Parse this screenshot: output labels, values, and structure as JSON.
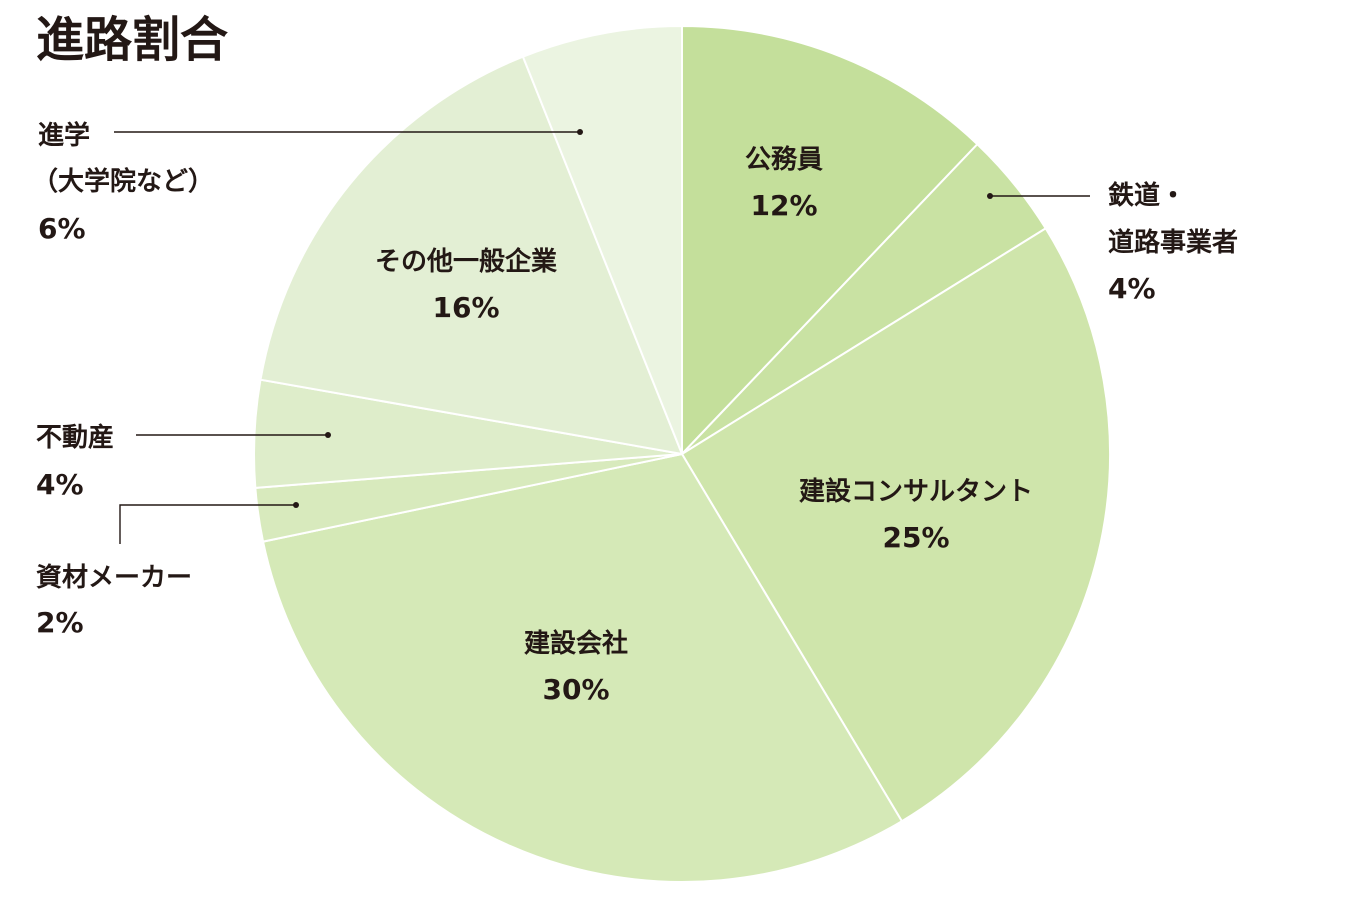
{
  "title": "進路割合",
  "chart_data": {
    "type": "pie",
    "title": "進路割合",
    "slices": [
      {
        "label": "公務員",
        "value": 12,
        "value_label": "12%",
        "color": "#c4df9b"
      },
      {
        "label": "鉄道・道路事業者",
        "label_lines": [
          "鉄道・",
          "道路事業者"
        ],
        "value": 4,
        "value_label": "4%",
        "color": "#c9e2a3"
      },
      {
        "label": "建設コンサルタント",
        "value": 25,
        "value_label": "25%",
        "color": "#cfe5ab"
      },
      {
        "label": "建設会社",
        "value": 30,
        "value_label": "30%",
        "color": "#d5e9b7"
      },
      {
        "label": "資材メーカー",
        "value": 2,
        "value_label": "2%",
        "color": "#d8eabd"
      },
      {
        "label": "不動産",
        "value": 4,
        "value_label": "4%",
        "color": "#deedca"
      },
      {
        "label": "その他一般企業",
        "value": 16,
        "value_label": "16%",
        "color": "#e3efd4"
      },
      {
        "label": "進学（大学院など）",
        "label_lines": [
          "進学",
          "（大学院など）"
        ],
        "value": 6,
        "value_label": "6%",
        "color": "#ebf4e1"
      }
    ]
  }
}
